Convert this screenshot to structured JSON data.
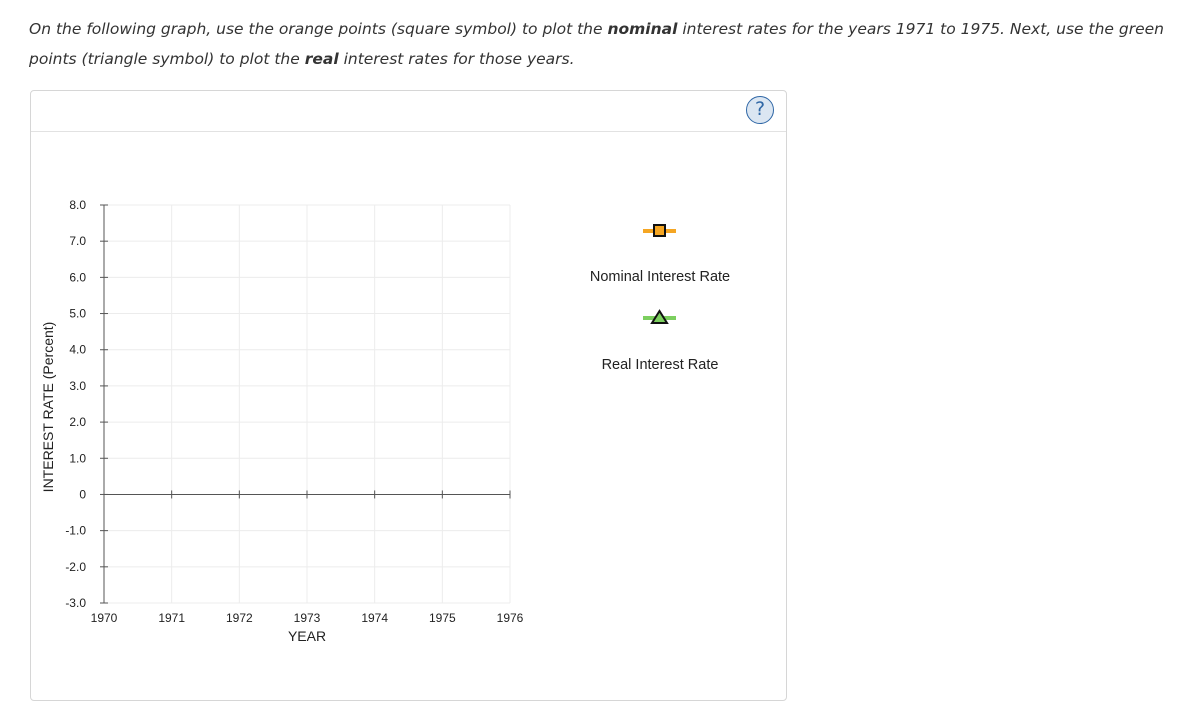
{
  "instructions": {
    "p1": "On the following graph, use the orange points (square symbol) to plot the ",
    "b1": "nominal",
    "p2": " interest rates for the years 1971 to 1975. Next, use the green points (triangle symbol) to plot the ",
    "b2": "real",
    "p3": " interest rates for those years."
  },
  "help": {
    "label": "?"
  },
  "chart_data": {
    "type": "scatter",
    "xlabel": "YEAR",
    "ylabel": "INTEREST RATE (Percent)",
    "x_ticks": [
      "1970",
      "1971",
      "1972",
      "1973",
      "1974",
      "1975",
      "1976"
    ],
    "y_ticks": [
      "8.0",
      "7.0",
      "6.0",
      "5.0",
      "4.0",
      "3.0",
      "2.0",
      "1.0",
      "0",
      "-1.0",
      "-2.0",
      "-3.0"
    ],
    "xlim": [
      1970,
      1976
    ],
    "ylim": [
      -3,
      8
    ],
    "grid": true,
    "legend_position": "right",
    "series": [
      {
        "name": "Nominal Interest Rate",
        "marker": "square",
        "color": "#f5a623",
        "values": []
      },
      {
        "name": "Real Interest Rate",
        "marker": "triangle",
        "color": "#7ccf5f",
        "values": []
      }
    ]
  },
  "colors": {
    "nominal_accent": "#f5a623",
    "real_accent": "#7ccf5f",
    "help_blue": "#2f67a6"
  }
}
